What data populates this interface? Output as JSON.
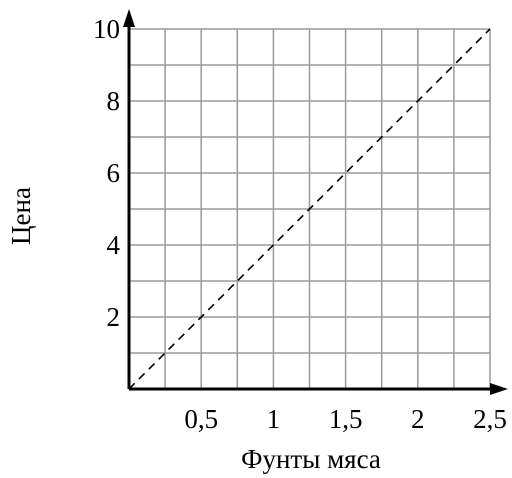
{
  "chart_data": {
    "type": "line",
    "xlabel": "Фунты мяса",
    "ylabel": "Цена",
    "xlim": [
      0,
      2.5
    ],
    "ylim": [
      0,
      10
    ],
    "x_ticks": [
      0.5,
      1,
      1.5,
      2,
      2.5
    ],
    "x_tick_labels": [
      "0,5",
      "1",
      "1,5",
      "2",
      "2,5"
    ],
    "y_ticks": [
      2,
      4,
      6,
      8,
      10
    ],
    "y_tick_labels": [
      "2",
      "4",
      "6",
      "8",
      "10"
    ],
    "grid": true,
    "grid_x_step": 0.25,
    "grid_y_step": 1,
    "series": [
      {
        "style": "dashed",
        "color": "#000000",
        "x": [
          0,
          2.5
        ],
        "y": [
          0,
          10
        ]
      }
    ]
  }
}
